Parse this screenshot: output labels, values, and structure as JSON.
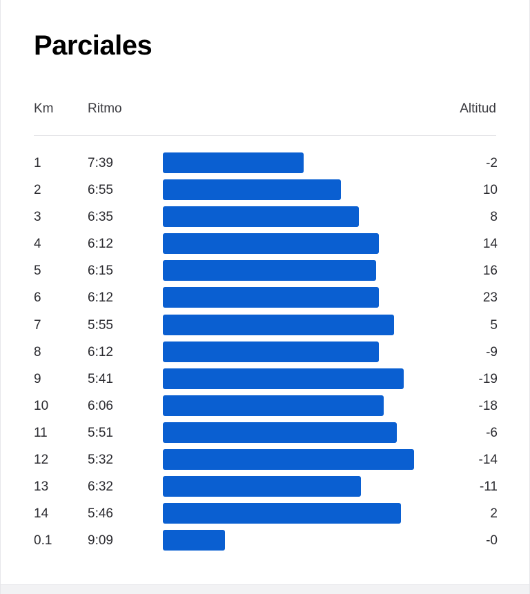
{
  "title": "Parciales",
  "header": {
    "km": "Km",
    "pace": "Ritmo",
    "elevation": "Altitud"
  },
  "colors": {
    "bar": "#0a5fd1"
  },
  "splits": [
    {
      "km": "1",
      "pace": "7:39",
      "elevation": "-2",
      "relative_speed": 0.537
    },
    {
      "km": "2",
      "pace": "6:55",
      "elevation": "10",
      "relative_speed": 0.679
    },
    {
      "km": "3",
      "pace": "6:35",
      "elevation": "8",
      "relative_speed": 0.747
    },
    {
      "km": "4",
      "pace": "6:12",
      "elevation": "14",
      "relative_speed": 0.824
    },
    {
      "km": "5",
      "pace": "6:15",
      "elevation": "16",
      "relative_speed": 0.813
    },
    {
      "km": "6",
      "pace": "6:12",
      "elevation": "23",
      "relative_speed": 0.824
    },
    {
      "km": "7",
      "pace": "5:55",
      "elevation": "5",
      "relative_speed": 0.882
    },
    {
      "km": "8",
      "pace": "6:12",
      "elevation": "-9",
      "relative_speed": 0.824
    },
    {
      "km": "9",
      "pace": "5:41",
      "elevation": "-19",
      "relative_speed": 0.918
    },
    {
      "km": "10",
      "pace": "6:06",
      "elevation": "-18",
      "relative_speed": 0.842
    },
    {
      "km": "11",
      "pace": "5:51",
      "elevation": "-6",
      "relative_speed": 0.892
    },
    {
      "km": "12",
      "pace": "5:32",
      "elevation": "-14",
      "relative_speed": 0.958
    },
    {
      "km": "13",
      "pace": "6:32",
      "elevation": "-11",
      "relative_speed": 0.755
    },
    {
      "km": "14",
      "pace": "5:46",
      "elevation": "2",
      "relative_speed": 0.908
    },
    {
      "km": "0.1",
      "pace": "9:09",
      "elevation": "-0",
      "relative_speed": 0.237
    }
  ]
}
